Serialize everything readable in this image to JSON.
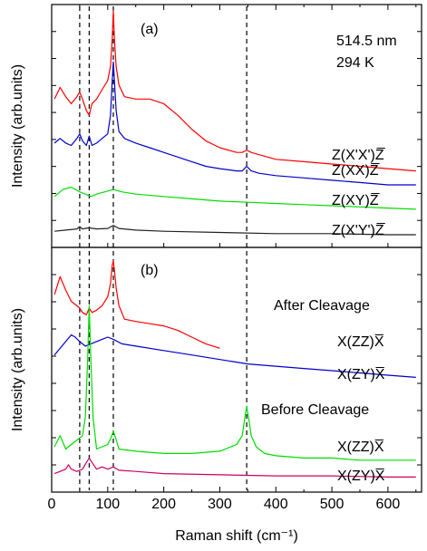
{
  "chart_data": {
    "type": "line",
    "xlabel": "Raman shift (cm⁻¹)",
    "ylabel": "Intensity (arb.units)",
    "xlim": [
      0,
      660
    ],
    "x_ticks": [
      0,
      100,
      200,
      300,
      400,
      500,
      600
    ],
    "grid": false,
    "reference_lines_x": [
      50,
      67,
      110,
      348
    ],
    "panels": [
      {
        "label": "(a)",
        "annotation": [
          "514.5 nm",
          "294 K"
        ],
        "section_labels": [],
        "series": [
          {
            "name": "Z(X'X')Z̅",
            "color": "#ff0000",
            "x": [
              5,
              15,
              25,
              35,
              45,
              50,
              55,
              62,
              67,
              72,
              80,
              90,
              100,
              105,
              108,
              110,
              112,
              115,
              120,
              130,
              150,
              175,
              200,
              225,
              250,
              275,
              300,
              330,
              340,
              348,
              356,
              370,
              400,
              450,
              500,
              550,
              600,
              650
            ],
            "y": [
              0.62,
              0.67,
              0.63,
              0.6,
              0.63,
              0.65,
              0.62,
              0.57,
              0.55,
              0.6,
              0.62,
              0.66,
              0.7,
              0.76,
              0.88,
              1.0,
              0.88,
              0.76,
              0.68,
              0.63,
              0.62,
              0.62,
              0.6,
              0.55,
              0.49,
              0.44,
              0.41,
              0.39,
              0.39,
              0.4,
              0.39,
              0.38,
              0.36,
              0.35,
              0.34,
              0.33,
              0.32,
              0.31
            ]
          },
          {
            "name": "Z(XX)Z̅",
            "color": "#0000cc",
            "x": [
              5,
              15,
              25,
              35,
              45,
              50,
              55,
              62,
              67,
              72,
              80,
              90,
              100,
              105,
              108,
              110,
              112,
              115,
              120,
              130,
              150,
              175,
              200,
              225,
              250,
              275,
              300,
              330,
              340,
              348,
              356,
              370,
              400,
              450,
              500,
              550,
              600,
              650
            ],
            "y": [
              0.43,
              0.45,
              0.43,
              0.42,
              0.45,
              0.47,
              0.44,
              0.42,
              0.46,
              0.42,
              0.43,
              0.45,
              0.47,
              0.55,
              0.7,
              0.78,
              0.7,
              0.57,
              0.48,
              0.45,
              0.43,
              0.41,
              0.39,
              0.37,
              0.35,
              0.33,
              0.32,
              0.31,
              0.31,
              0.33,
              0.31,
              0.3,
              0.29,
              0.28,
              0.27,
              0.26,
              0.25,
              0.25
            ]
          },
          {
            "name": "Z(XY)Z̅",
            "color": "#00dd00",
            "x": [
              5,
              20,
              35,
              50,
              60,
              70,
              80,
              95,
              110,
              125,
              150,
              200,
              250,
              300,
              350,
              400,
              450,
              500,
              550,
              600,
              650
            ],
            "y": [
              0.2,
              0.23,
              0.24,
              0.22,
              0.21,
              0.2,
              0.21,
              0.22,
              0.23,
              0.22,
              0.21,
              0.2,
              0.19,
              0.18,
              0.175,
              0.17,
              0.165,
              0.16,
              0.155,
              0.15,
              0.145
            ]
          },
          {
            "name": "Z(X'Y')Z̅",
            "color": "#222222",
            "x": [
              5,
              25,
              45,
              50,
              55,
              67,
              80,
              100,
              110,
              120,
              150,
              200,
              300,
              400,
              500,
              600,
              650
            ],
            "y": [
              0.05,
              0.055,
              0.06,
              0.07,
              0.06,
              0.065,
              0.06,
              0.062,
              0.075,
              0.062,
              0.055,
              0.05,
              0.045,
              0.04,
              0.04,
              0.035,
              0.035
            ]
          }
        ]
      },
      {
        "label": "(b)",
        "annotation": [],
        "section_labels": [
          "After Cleavage",
          "Before Cleavage"
        ],
        "series": [
          {
            "name": "X(ZZ)X̅",
            "color": "#ff0000",
            "group": "After Cleavage",
            "x": [
              5,
              15,
              25,
              35,
              45,
              50,
              55,
              62,
              67,
              72,
              80,
              90,
              100,
              105,
              108,
              110,
              112,
              115,
              120,
              130,
              150,
              175,
              200,
              225,
              250,
              275,
              300
            ],
            "y": [
              0.85,
              0.93,
              0.87,
              0.82,
              0.8,
              0.79,
              0.77,
              0.76,
              0.79,
              0.77,
              0.78,
              0.8,
              0.84,
              0.9,
              0.98,
              1.0,
              0.96,
              0.88,
              0.8,
              0.74,
              0.73,
              0.72,
              0.71,
              0.69,
              0.66,
              0.63,
              0.61
            ]
          },
          {
            "name": "X(ZY)X̅",
            "color": "#0000cc",
            "group": "After Cleavage",
            "x": [
              5,
              15,
              25,
              35,
              42,
              50,
              60,
              70,
              80,
              90,
              100,
              110,
              125,
              150,
              200,
              250,
              300,
              350,
              400,
              450,
              500,
              550,
              600,
              650
            ],
            "y": [
              0.58,
              0.61,
              0.64,
              0.67,
              0.66,
              0.64,
              0.62,
              0.63,
              0.64,
              0.65,
              0.66,
              0.65,
              0.63,
              0.62,
              0.6,
              0.58,
              0.56,
              0.54,
              0.53,
              0.52,
              0.51,
              0.5,
              0.49,
              0.48
            ]
          },
          {
            "name": "X(ZZ)X̅",
            "color": "#00dd00",
            "group": "Before Cleavage",
            "x": [
              5,
              15,
              25,
              35,
              45,
              55,
              60,
              64,
              67,
              70,
              74,
              80,
              90,
              100,
              106,
              110,
              114,
              120,
              150,
              200,
              250,
              300,
              330,
              340,
              344,
              348,
              352,
              356,
              365,
              380,
              400,
              450,
              500,
              550,
              600,
              650
            ],
            "y": [
              0.17,
              0.22,
              0.16,
              0.18,
              0.2,
              0.22,
              0.3,
              0.55,
              0.8,
              0.55,
              0.3,
              0.16,
              0.17,
              0.18,
              0.21,
              0.24,
              0.21,
              0.16,
              0.15,
              0.14,
              0.14,
              0.15,
              0.18,
              0.22,
              0.29,
              0.35,
              0.29,
              0.22,
              0.17,
              0.14,
              0.13,
              0.12,
              0.12,
              0.11,
              0.11,
              0.11
            ]
          },
          {
            "name": "X(ZY)X̅",
            "color": "#cc0066",
            "group": "Before Cleavage",
            "x": [
              5,
              15,
              25,
              30,
              35,
              45,
              55,
              62,
              67,
              72,
              80,
              90,
              100,
              110,
              120,
              150,
              200,
              300,
              400,
              500,
              600,
              650
            ],
            "y": [
              0.05,
              0.06,
              0.07,
              0.09,
              0.07,
              0.06,
              0.07,
              0.1,
              0.12,
              0.1,
              0.07,
              0.08,
              0.07,
              0.08,
              0.065,
              0.06,
              0.05,
              0.045,
              0.04,
              0.04,
              0.035,
              0.035
            ]
          }
        ]
      }
    ]
  }
}
